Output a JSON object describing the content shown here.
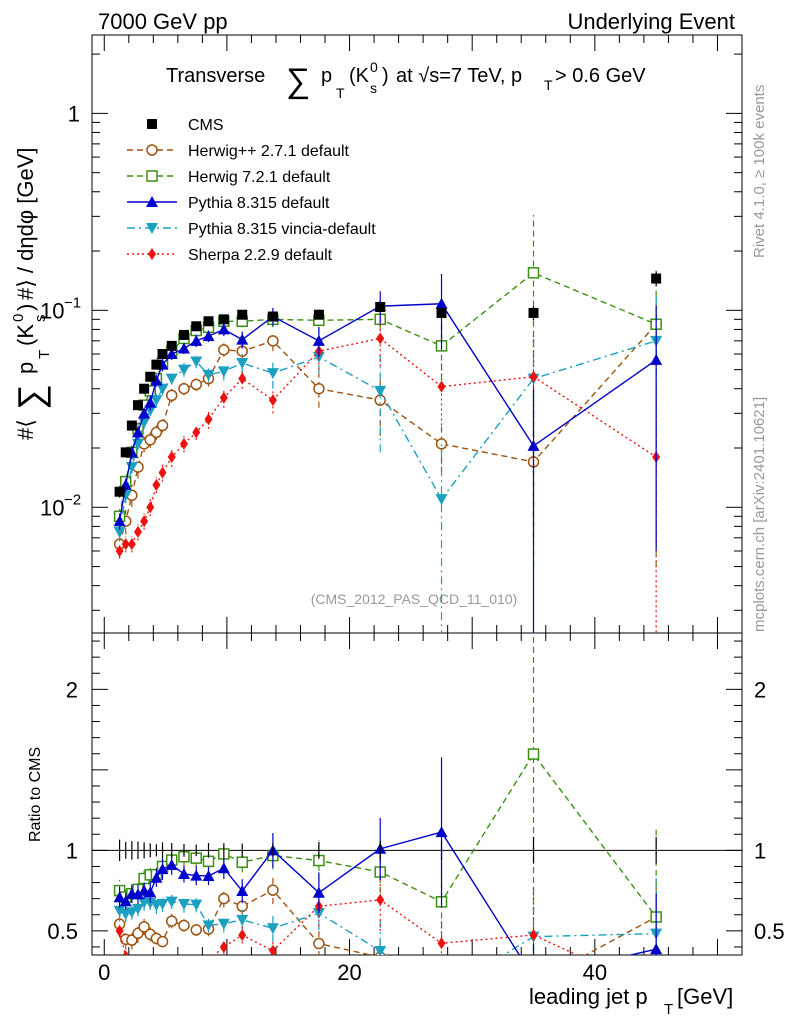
{
  "header": {
    "left": "7000 GeV pp",
    "right": "Underlying Event"
  },
  "chart_data": {
    "type": "scatter",
    "title": {
      "prefix": "Transverse",
      "sum_sym": "∑",
      "p": "p",
      "T": "T",
      "open": "(K",
      "sup": "0",
      "sub": "s",
      "close": ")",
      "rest": "at √s=7 TeV, p",
      "T2": "T",
      "cut": " > 0.6 GeV"
    },
    "ylabel": "#⟨ ∑ p_T(K⁰_s) #⟩ / dηdφ [GeV]",
    "ylabel_parts": {
      "hash": "#⟨",
      "sum": "∑",
      "p": "p",
      "T": "T",
      "open": "(K",
      "sup": "0",
      "sub": "s",
      "close": ")",
      "rest": "#⟩ / dηdφ [GeV]"
    },
    "xlabel": {
      "text": "leading jet p",
      "sub": "T",
      "unit": "[GeV]"
    },
    "ratio_ylabel": "Ratio to CMS",
    "analysis_id": "(CMS_2012_PAS_QCD_11_010)",
    "side_right_top": "Rivet 4.1.0, ≥ 100k events",
    "side_right_bottom": "mcplots.cern.ch [arXiv:2401.10621]",
    "xlim": [
      -1,
      52
    ],
    "ylim": [
      0.0023,
      2.5
    ],
    "ylog": true,
    "ratio_ylim": [
      0.35,
      2.35
    ],
    "yticks_main": [
      {
        "value": 1,
        "label": "1",
        "exp": ""
      },
      {
        "value": 0.1,
        "label": "10",
        "exp": "−1"
      },
      {
        "value": 0.01,
        "label": "10",
        "exp": "−2"
      }
    ],
    "yticks_ratio": [
      {
        "value": 0.5,
        "label": "0.5"
      },
      {
        "value": 1,
        "label": "1"
      },
      {
        "value": 2,
        "label": "2"
      }
    ],
    "xticks": [
      {
        "value": 0,
        "label": "0"
      },
      {
        "value": 20,
        "label": "20"
      },
      {
        "value": 40,
        "label": "40"
      }
    ],
    "x": [
      1.25,
      1.75,
      2.25,
      2.75,
      3.25,
      3.75,
      4.25,
      4.75,
      5.5,
      6.5,
      7.5,
      8.5,
      9.75,
      11.25,
      13.75,
      17.5,
      22.5,
      27.5,
      35,
      45
    ],
    "series": [
      {
        "name": "CMS",
        "marker": "square-filled",
        "color": "#000000",
        "line": "none",
        "values": [
          0.012,
          0.019,
          0.026,
          0.033,
          0.04,
          0.046,
          0.053,
          0.06,
          0.066,
          0.075,
          0.083,
          0.088,
          0.09,
          0.095,
          0.093,
          0.095,
          0.104,
          0.097,
          0.097,
          0.145
        ],
        "errors": [
          0.0008,
          0.001,
          0.0015,
          0.0018,
          0.002,
          0.002,
          0.002,
          0.003,
          0.003,
          0.003,
          0.003,
          0.004,
          0.004,
          0.004,
          0.004,
          0.005,
          0.006,
          0.006,
          0.008,
          0.012
        ]
      },
      {
        "name": "Herwig++ 2.7.1 default",
        "marker": "circle-open",
        "color": "#a0520f",
        "line": "dashed",
        "values": [
          0.0065,
          0.0085,
          0.0115,
          0.016,
          0.021,
          0.022,
          0.024,
          0.026,
          0.037,
          0.04,
          0.042,
          0.045,
          0.063,
          0.062,
          0.07,
          0.04,
          0.035,
          0.021,
          0.017,
          0.085
        ],
        "errors": [
          0.001,
          0.0012,
          0.0015,
          0.002,
          0.002,
          0.002,
          0.002,
          0.002,
          0.003,
          0.003,
          0.003,
          0.004,
          0.005,
          0.006,
          0.008,
          0.008,
          0.012,
          0.006,
          0.01,
          0.03
        ]
      },
      {
        "name": "Herwig 7.2.1 default",
        "marker": "square-open",
        "color": "#3d8f12",
        "line": "dashed",
        "values": [
          0.009,
          0.0135,
          0.019,
          0.025,
          0.033,
          0.039,
          0.045,
          0.054,
          0.062,
          0.072,
          0.079,
          0.082,
          0.088,
          0.088,
          0.09,
          0.089,
          0.09,
          0.066,
          0.155,
          0.085
        ],
        "errors": [
          0.0008,
          0.001,
          0.0015,
          0.002,
          0.002,
          0.002,
          0.003,
          0.003,
          0.003,
          0.004,
          0.004,
          0.004,
          0.005,
          0.006,
          0.008,
          0.012,
          0.02,
          0.022,
          0.15,
          0.08
        ]
      },
      {
        "name": "Pythia 8.315 default",
        "marker": "triangle-up-filled",
        "color": "#0000cc",
        "line": "solid",
        "values": [
          0.0085,
          0.013,
          0.019,
          0.024,
          0.03,
          0.034,
          0.044,
          0.053,
          0.06,
          0.064,
          0.07,
          0.074,
          0.08,
          0.071,
          0.093,
          0.07,
          0.105,
          0.108,
          0.0205,
          0.056
        ],
        "errors": [
          0.0008,
          0.001,
          0.0015,
          0.002,
          0.002,
          0.003,
          0.003,
          0.004,
          0.004,
          0.004,
          0.005,
          0.005,
          0.006,
          0.007,
          0.01,
          0.012,
          0.02,
          0.045,
          0.02,
          0.05
        ]
      },
      {
        "name": "Pythia 8.315 vincia-default",
        "marker": "triangle-down-filled",
        "color": "#1ba0c0",
        "line": "dashdot",
        "values": [
          0.0075,
          0.0115,
          0.016,
          0.021,
          0.027,
          0.031,
          0.035,
          0.04,
          0.045,
          0.05,
          0.055,
          0.047,
          0.049,
          0.054,
          0.048,
          0.058,
          0.039,
          0.011,
          0.045,
          0.07
        ],
        "errors": [
          0.0008,
          0.001,
          0.0012,
          0.0015,
          0.002,
          0.002,
          0.003,
          0.003,
          0.003,
          0.004,
          0.004,
          0.004,
          0.005,
          0.006,
          0.008,
          0.01,
          0.02,
          0.011,
          0.03,
          0.05
        ]
      },
      {
        "name": "Sherpa 2.2.9 default",
        "marker": "diamond-filled",
        "color": "#ee1111",
        "line": "dotted",
        "values": [
          0.006,
          0.0065,
          0.0065,
          0.0075,
          0.0085,
          0.01,
          0.013,
          0.015,
          0.018,
          0.021,
          0.024,
          0.028,
          0.036,
          0.045,
          0.035,
          0.062,
          0.072,
          0.041,
          0.046,
          0.018
        ],
        "errors": [
          0.0005,
          0.0006,
          0.0006,
          0.0007,
          0.0008,
          0.001,
          0.0012,
          0.0015,
          0.002,
          0.002,
          0.002,
          0.003,
          0.004,
          0.005,
          0.005,
          0.012,
          0.02,
          0.015,
          0.03,
          0.02
        ]
      }
    ]
  }
}
